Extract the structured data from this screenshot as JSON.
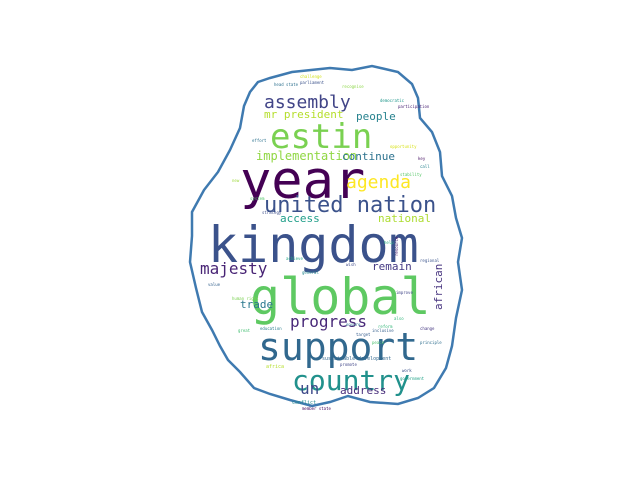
{
  "cloud": {
    "outline_color": "#3f7ab0",
    "words": [
      {
        "text": "kingdom",
        "color": "#3b528b"
      },
      {
        "text": "year",
        "color": "#440154"
      },
      {
        "text": "global",
        "color": "#5ec962"
      },
      {
        "text": "support",
        "color": "#31688e"
      },
      {
        "text": "estin",
        "color": "#7ad151"
      },
      {
        "text": "country",
        "color": "#21918c"
      },
      {
        "text": "united nation",
        "color": "#3b528b"
      },
      {
        "text": "assembly",
        "color": "#414487"
      },
      {
        "text": "agenda",
        "color": "#fde725"
      },
      {
        "text": "majesty",
        "color": "#482475"
      },
      {
        "text": "progress",
        "color": "#482878"
      },
      {
        "text": "un",
        "color": "#3e4a89"
      },
      {
        "text": "implementation",
        "color": "#90d743"
      },
      {
        "text": "continue",
        "color": "#2c728e"
      },
      {
        "text": "people",
        "color": "#26828e"
      },
      {
        "text": "mr president",
        "color": "#b5de2b"
      },
      {
        "text": "national",
        "color": "#addc30"
      },
      {
        "text": "access",
        "color": "#1f9e89"
      },
      {
        "text": "remain",
        "color": "#443983"
      },
      {
        "text": "trade",
        "color": "#2a788e"
      },
      {
        "text": "address",
        "color": "#472d7b"
      },
      {
        "text": "african",
        "color": "#46337e"
      },
      {
        "text": "sustainable development",
        "color": "#31688e"
      },
      {
        "text": "conflict",
        "color": "#23898e"
      },
      {
        "text": "africa",
        "color": "#b5de2b"
      },
      {
        "text": "education",
        "color": "#287c8e"
      },
      {
        "text": "promote",
        "color": "#404688"
      },
      {
        "text": "achieve",
        "color": "#22a785"
      },
      {
        "text": "inclusive",
        "color": "#355f8d"
      },
      {
        "text": "member state",
        "color": "#46085c"
      },
      {
        "text": "work",
        "color": "#3b528b"
      },
      {
        "text": "head state",
        "color": "#2d708e"
      },
      {
        "text": "participation",
        "color": "#482173"
      },
      {
        "text": "strategy",
        "color": "#3d4e8a"
      },
      {
        "text": "opportunity",
        "color": "#d8e219"
      },
      {
        "text": "government",
        "color": "#1fa187"
      },
      {
        "text": "principle",
        "color": "#2e6e8e"
      },
      {
        "text": "change",
        "color": "#453781"
      },
      {
        "text": "regional",
        "color": "#3a548c"
      },
      {
        "text": "target",
        "color": "#365c8d"
      },
      {
        "text": "great",
        "color": "#42be71"
      },
      {
        "text": "wish",
        "color": "#3e4989"
      },
      {
        "text": "help",
        "color": "#29af7f"
      },
      {
        "text": "call",
        "color": "#25838e"
      },
      {
        "text": "value",
        "color": "#34618d"
      },
      {
        "text": "peace",
        "color": "#4ac16d"
      },
      {
        "text": "human right",
        "color": "#7ad151"
      },
      {
        "text": "system",
        "color": "#52c569"
      },
      {
        "text": "challenge",
        "color": "#d2e21b"
      },
      {
        "text": "parliament",
        "color": "#3b528b"
      },
      {
        "text": "democratic",
        "color": "#1f968b"
      },
      {
        "text": "recognise",
        "color": "#8bd646"
      },
      {
        "text": "effort",
        "color": "#2c728e"
      },
      {
        "text": "resource",
        "color": "#48186a"
      },
      {
        "text": "improve",
        "color": "#404588"
      },
      {
        "text": "general",
        "color": "#24878e"
      },
      {
        "text": "reform",
        "color": "#35b779"
      },
      {
        "text": "ensure",
        "color": "#2d708e"
      },
      {
        "text": "stability",
        "color": "#56c667"
      },
      {
        "text": "key",
        "color": "#471365"
      },
      {
        "text": "also",
        "color": "#31b57b"
      },
      {
        "text": "new",
        "color": "#9dd93b"
      }
    ]
  }
}
